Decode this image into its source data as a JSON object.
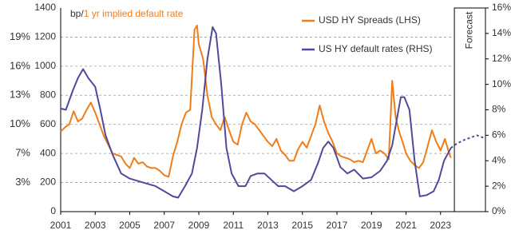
{
  "chart_data": {
    "type": "line",
    "left_unit": "bp/",
    "implied_title": "1 yr implied default rate",
    "implied_color": "#f07d1a",
    "xlim": [
      2001,
      2025.6
    ],
    "xticks": [
      2001,
      2003,
      2005,
      2007,
      2009,
      2011,
      2013,
      2015,
      2017,
      2019,
      2021,
      2023
    ],
    "ylim": [
      0,
      1400
    ],
    "yticks": [
      0,
      200,
      400,
      600,
      800,
      1000,
      1200,
      1400
    ],
    "y2lim": [
      0,
      16
    ],
    "y2ticks": [
      {
        "value": 0,
        "label": "0%"
      },
      {
        "value": 2,
        "label": "2%"
      },
      {
        "value": 4,
        "label": "4%"
      },
      {
        "value": 6,
        "label": "6%"
      },
      {
        "value": 8,
        "label": "8%"
      },
      {
        "value": 10,
        "label": "10%"
      },
      {
        "value": 12,
        "label": "12%"
      },
      {
        "value": 14,
        "label": "14%"
      },
      {
        "value": 16,
        "label": "16%"
      }
    ],
    "implied_labels": [
      {
        "value": 200,
        "label": "3%"
      },
      {
        "value": 400,
        "label": "7%"
      },
      {
        "value": 600,
        "label": "10%"
      },
      {
        "value": 800,
        "label": "13%"
      },
      {
        "value": 1000,
        "label": "16%"
      },
      {
        "value": 1200,
        "label": "19%"
      }
    ],
    "grid": true,
    "forecast": {
      "label": "Forecast",
      "start": 2023.8
    },
    "series": [
      {
        "name": "USD HY Spreads (LHS)",
        "color": "#f07d1a",
        "axis": "y",
        "x": [
          2001.0,
          2001.25,
          2001.5,
          2001.75,
          2002.0,
          2002.25,
          2002.5,
          2002.75,
          2003.0,
          2003.25,
          2003.5,
          2003.75,
          2004.0,
          2004.25,
          2004.5,
          2004.75,
          2005.0,
          2005.25,
          2005.5,
          2005.75,
          2006.0,
          2006.25,
          2006.5,
          2006.75,
          2007.0,
          2007.25,
          2007.5,
          2007.75,
          2008.0,
          2008.25,
          2008.5,
          2008.75,
          2008.9,
          2009.0,
          2009.25,
          2009.5,
          2009.75,
          2010.0,
          2010.25,
          2010.5,
          2010.75,
          2011.0,
          2011.25,
          2011.5,
          2011.75,
          2012.0,
          2012.25,
          2012.5,
          2012.75,
          2013.0,
          2013.25,
          2013.5,
          2013.75,
          2014.0,
          2014.25,
          2014.5,
          2014.75,
          2015.0,
          2015.25,
          2015.5,
          2015.75,
          2016.0,
          2016.25,
          2016.5,
          2016.75,
          2017.0,
          2017.25,
          2017.5,
          2017.75,
          2018.0,
          2018.25,
          2018.5,
          2018.75,
          2019.0,
          2019.25,
          2019.5,
          2019.75,
          2020.0,
          2020.2,
          2020.4,
          2020.6,
          2020.8,
          2021.0,
          2021.25,
          2021.5,
          2021.75,
          2022.0,
          2022.25,
          2022.5,
          2022.75,
          2023.0,
          2023.25,
          2023.5,
          2023.6
        ],
        "values": [
          550,
          580,
          600,
          690,
          620,
          640,
          700,
          750,
          680,
          600,
          520,
          460,
          400,
          390,
          380,
          330,
          300,
          370,
          330,
          340,
          310,
          300,
          300,
          280,
          250,
          240,
          380,
          480,
          600,
          680,
          700,
          1250,
          1280,
          1150,
          1050,
          800,
          650,
          600,
          560,
          650,
          560,
          480,
          460,
          600,
          680,
          620,
          600,
          560,
          520,
          480,
          450,
          500,
          420,
          390,
          350,
          350,
          430,
          480,
          440,
          520,
          600,
          730,
          620,
          540,
          480,
          400,
          380,
          370,
          360,
          340,
          350,
          340,
          420,
          500,
          400,
          420,
          400,
          360,
          900,
          650,
          550,
          480,
          400,
          350,
          320,
          300,
          340,
          450,
          560,
          480,
          420,
          500,
          400,
          370
        ]
      },
      {
        "name": "US HY default rates (RHS)",
        "color": "#4e4a9b",
        "axis": "y2",
        "x": [
          2001.0,
          2001.3,
          2001.7,
          2002.0,
          2002.3,
          2002.6,
          2003.0,
          2003.3,
          2003.6,
          2004.0,
          2004.5,
          2005.0,
          2005.5,
          2006.0,
          2006.5,
          2007.0,
          2007.5,
          2007.8,
          2008.2,
          2008.6,
          2008.9,
          2009.2,
          2009.5,
          2009.8,
          2010.0,
          2010.3,
          2010.6,
          2010.9,
          2011.3,
          2011.7,
          2012.0,
          2012.4,
          2012.8,
          2013.2,
          2013.6,
          2014.0,
          2014.5,
          2015.0,
          2015.5,
          2015.9,
          2016.2,
          2016.5,
          2016.8,
          2017.2,
          2017.6,
          2018.0,
          2018.5,
          2019.0,
          2019.5,
          2019.9,
          2020.2,
          2020.5,
          2020.7,
          2020.9,
          2021.2,
          2021.5,
          2021.8,
          2022.2,
          2022.6,
          2022.9,
          2023.2,
          2023.6
        ],
        "values": [
          8.1,
          8.0,
          9.5,
          10.5,
          11.2,
          10.5,
          9.8,
          8.0,
          6.0,
          4.5,
          3.0,
          2.6,
          2.4,
          2.2,
          2.0,
          1.6,
          1.2,
          1.1,
          2.0,
          3.0,
          5.0,
          8.0,
          12.0,
          14.5,
          14.0,
          10.0,
          5.0,
          3.0,
          2.0,
          2.0,
          2.8,
          3.0,
          3.0,
          2.5,
          2.0,
          2.0,
          1.6,
          2.0,
          2.5,
          3.8,
          5.0,
          5.5,
          5.0,
          3.5,
          3.0,
          3.3,
          2.6,
          2.7,
          3.2,
          4.0,
          5.2,
          7.5,
          9.0,
          9.0,
          8.0,
          4.0,
          1.2,
          1.3,
          1.6,
          2.5,
          4.0,
          5.0
        ]
      },
      {
        "color": "#4e4a9b",
        "axis": "y2",
        "dashed": true,
        "x": [
          2023.6,
          2023.9,
          2024.3,
          2024.7,
          2025.1,
          2025.5
        ],
        "values": [
          5.0,
          5.3,
          5.6,
          5.8,
          6.0,
          5.8
        ]
      }
    ]
  }
}
